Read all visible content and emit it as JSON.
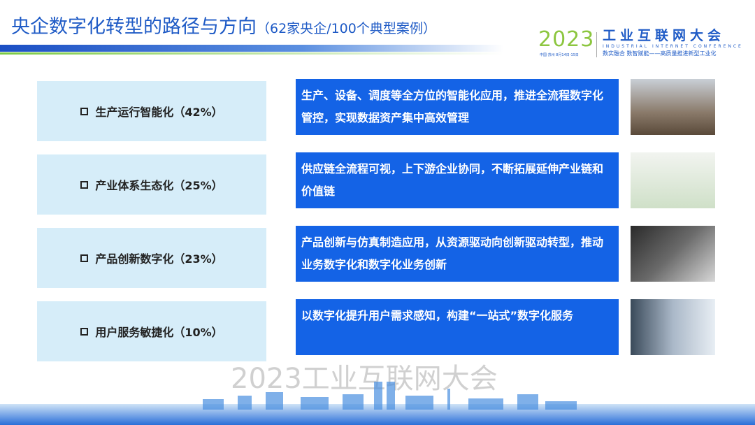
{
  "header": {
    "title": "央企数字化转型的路径与方向",
    "subtitle": "（62家央企/100个典型案例）"
  },
  "logo": {
    "year": "2023",
    "location": "中国·苏州 8月14日-15日",
    "name_cn": "工业互联网大会",
    "name_en": "INDUSTRIAL INTERNET CONFERENCE",
    "slogan": "数实融合 数智赋能——高质量推进新型工业化"
  },
  "rows": [
    {
      "label": "生产运行智能化（42%）",
      "desc": "生产、设备、调度等全方位的智能化应用，推进全流程数字化管控，实现数据资产集中高效管理",
      "photo": "industrial-plant-photo"
    },
    {
      "label": "产业体系生态化（25%）",
      "desc": "供应链全流程可视，上下游企业协同，不断拓展延伸产业链和价值链",
      "photo": "supply-chain-illustration"
    },
    {
      "label": "产品创新数字化（23%）",
      "desc": "产品创新与仿真制造应用，从资源驱动向创新驱动转型，推动业务数字化和数字化业务创新",
      "photo": "tablet-design-photo"
    },
    {
      "label": "用户服务敏捷化（10%）",
      "desc": "以数字化提升用户需求感知，构建“一站式”数字化服务",
      "photo": "businessman-chart-photo"
    }
  ],
  "watermark": "2023工业互联网大会",
  "colors": {
    "accent": "#1463e6",
    "title": "#1f5bc6",
    "label_bg": "#d6edf9",
    "green": "#8cc63f"
  }
}
